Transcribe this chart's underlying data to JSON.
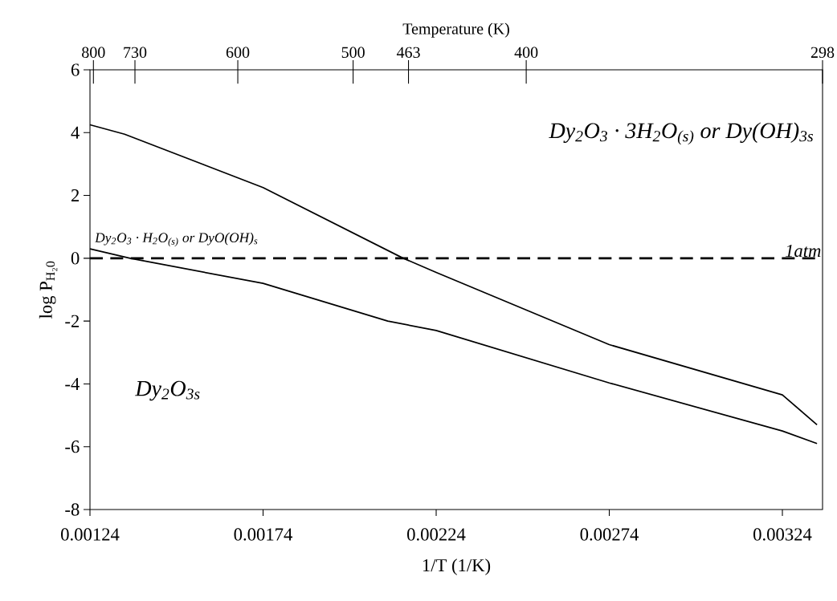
{
  "chart_data": {
    "type": "line",
    "xlabel": "1/T (1/K)",
    "ylabel": "log P$_{H₂0}$",
    "x2label": "Temperature (K)",
    "xlim": [
      0.00124,
      0.003356
    ],
    "ylim": [
      -8,
      6
    ],
    "xticks": [
      {
        "value": 0.00124,
        "label": "0.00124"
      },
      {
        "value": 0.00174,
        "label": "0.00174"
      },
      {
        "value": 0.00224,
        "label": "0.00224"
      },
      {
        "value": 0.00274,
        "label": "0.00274"
      },
      {
        "value": 0.00324,
        "label": "0.00324"
      }
    ],
    "yticks": [
      -8,
      -6,
      -4,
      -2,
      0,
      2,
      4,
      6
    ],
    "series": [
      {
        "color": "#000000",
        "x": [
          0.00124,
          0.00134,
          0.00174,
          0.002145,
          0.00224,
          0.00274,
          0.00324,
          0.00334
        ],
        "values": [
          4.25,
          3.95,
          2.25,
          0,
          -0.45,
          -2.75,
          -4.35,
          -5.3
        ]
      },
      {
        "color": "#000000",
        "x": [
          0.00124,
          0.001356,
          0.00174,
          0.0021,
          0.00224,
          0.00274,
          0.00324,
          0.00334
        ],
        "values": [
          0.3,
          0,
          -0.8,
          -2.0,
          -2.3,
          -3.97,
          -5.5,
          -5.9
        ]
      }
    ],
    "line_style": "solid",
    "ref_lines": [
      {
        "axis": "y",
        "value": 0,
        "label": "1atm",
        "line_style": "dashed",
        "color": "#000000"
      }
    ],
    "annotations": [
      "Dy$_{2}$O$_{3}$ · 3H$_{2}$O$_{(s)}$   or   Dy(OH)$_{3s}$",
      "Dy$_{2}$O$_{3}$ · H$_{2}$O$_{(s)}$ or DyO(OH)$_{s}$",
      "Dy$_{2}$O$_{3s}$",
      "800",
      "730",
      "600",
      "500",
      "463",
      "400",
      "298"
    ],
    "grid": false
  }
}
